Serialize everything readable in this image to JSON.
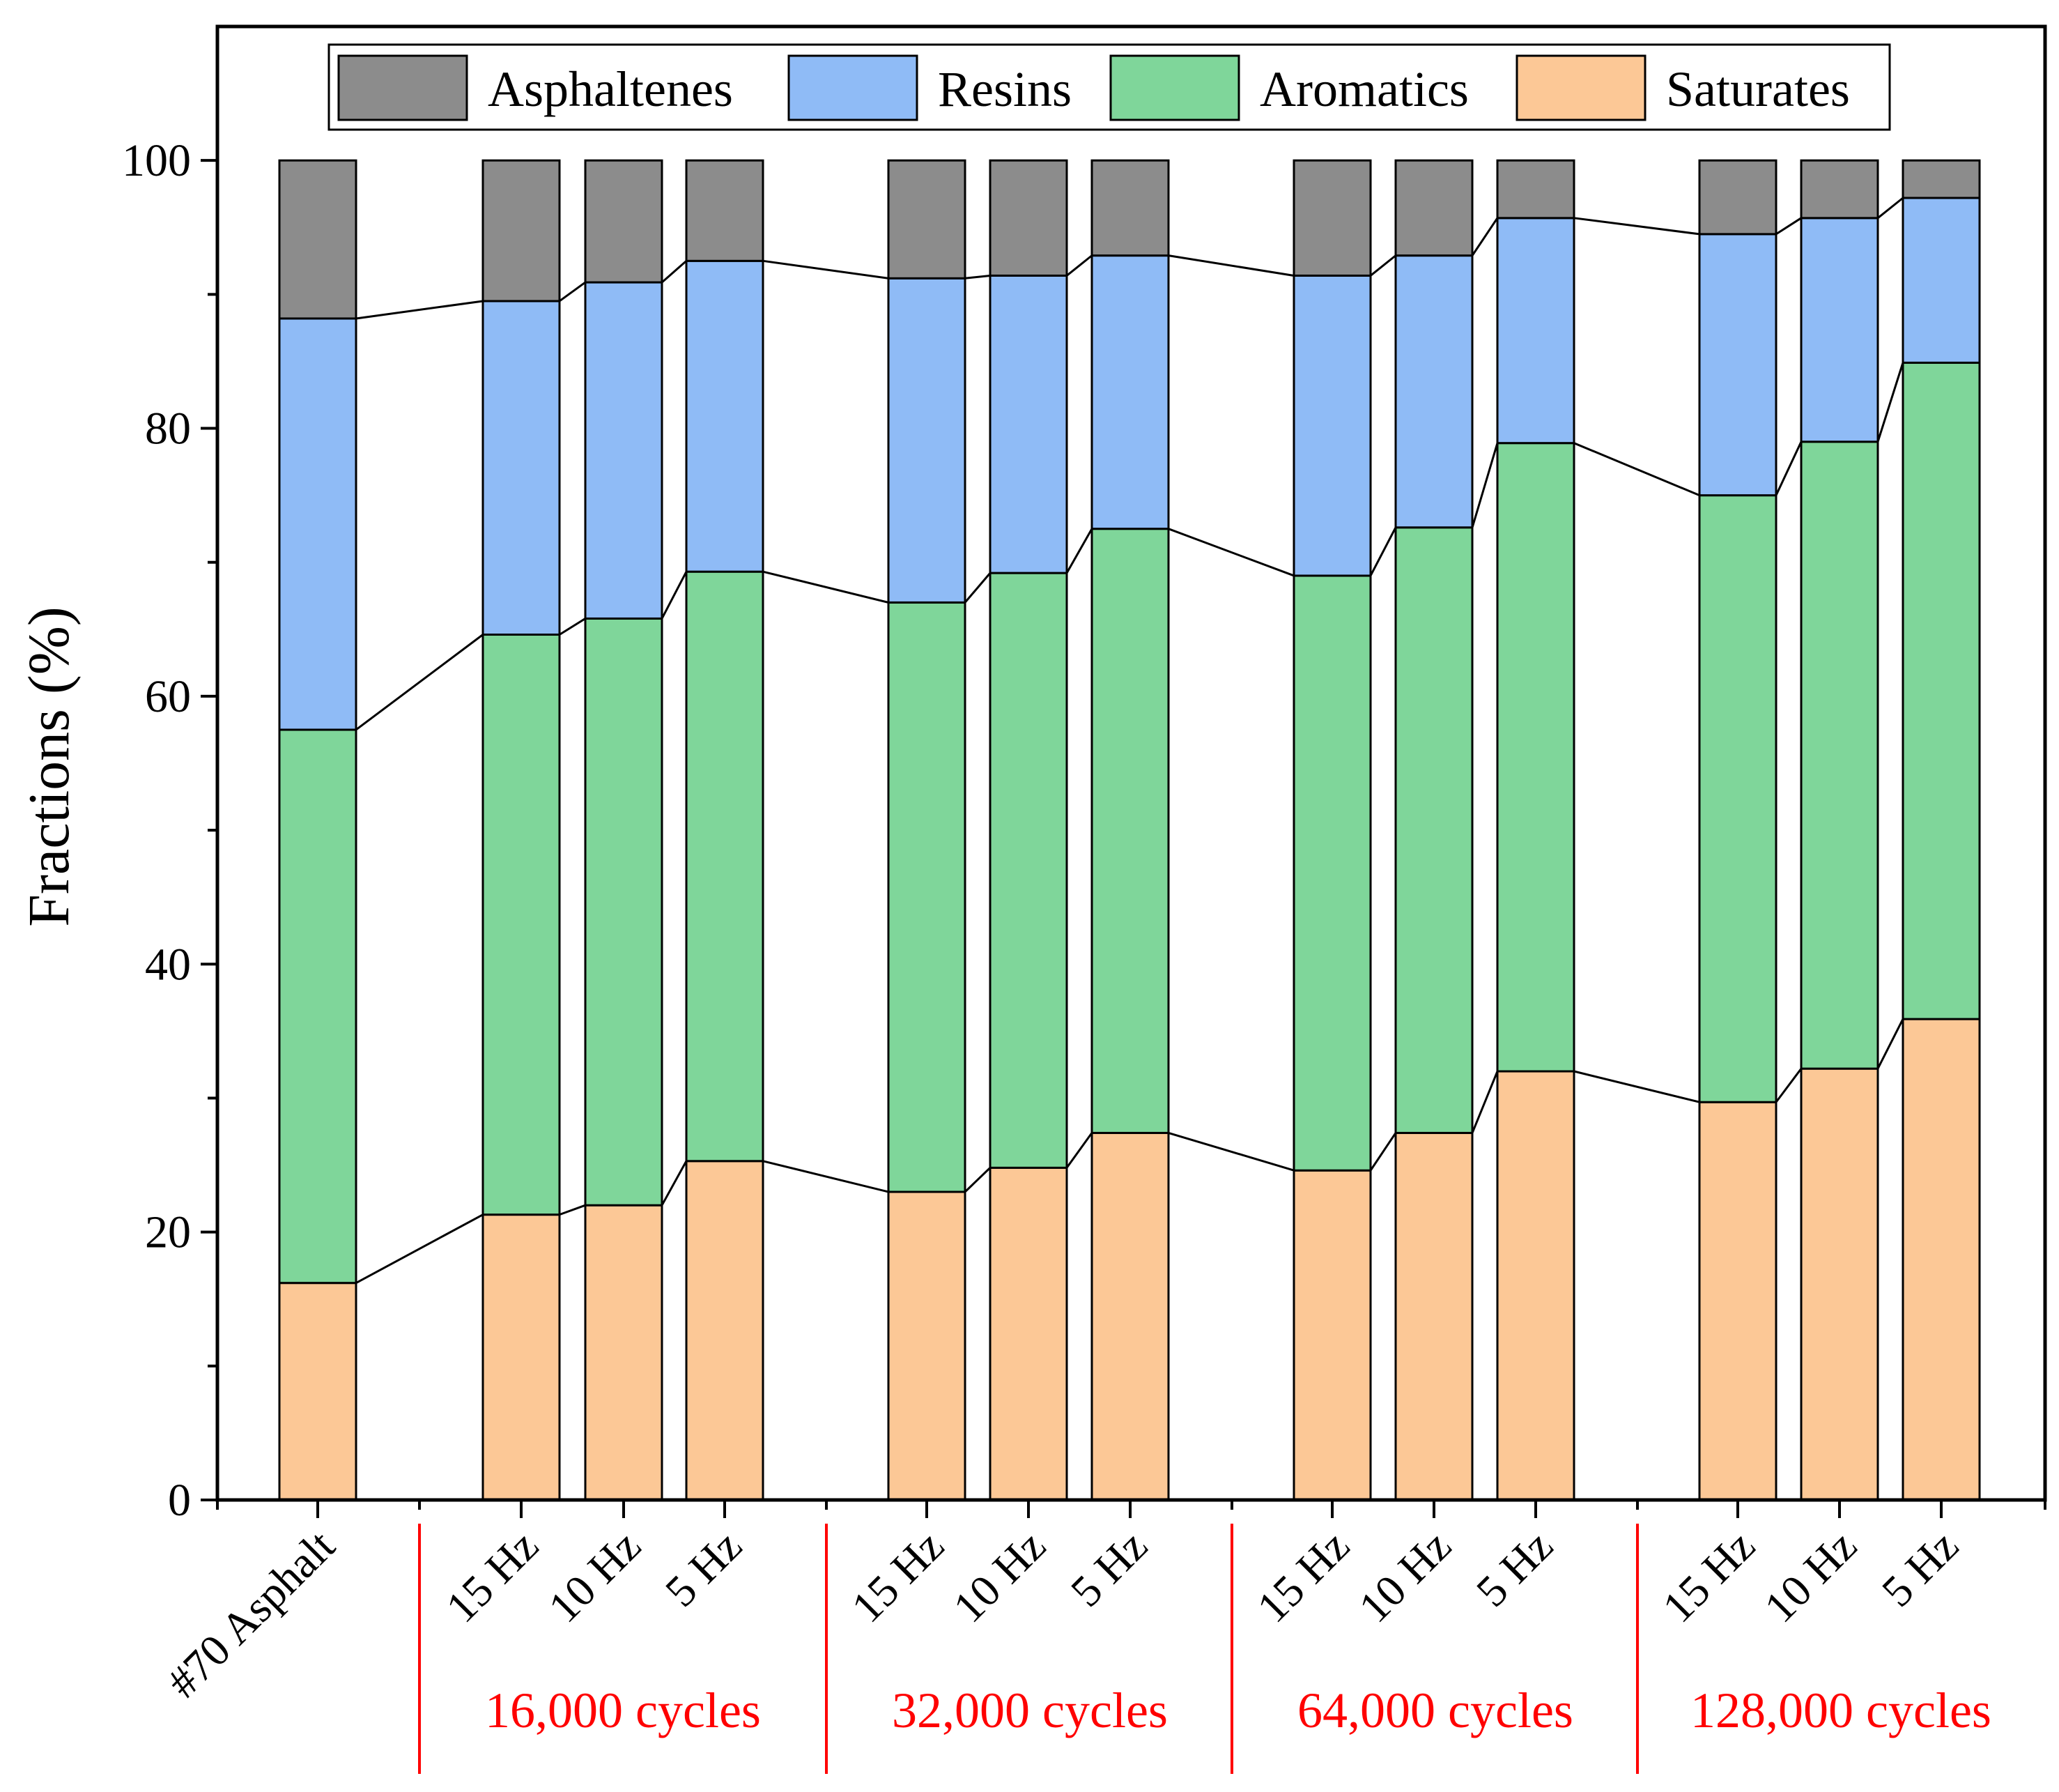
{
  "chart_data": {
    "type": "bar",
    "stacked": true,
    "ylabel": "Fractions (%)",
    "xlabel": "",
    "ylim": [
      0,
      110
    ],
    "yticks": [
      0,
      20,
      40,
      60,
      80,
      100
    ],
    "grid": false,
    "legend_position": "top",
    "connector_lines": true,
    "categories": [
      "#70 Asphalt",
      "15 Hz",
      "10 Hz",
      "5 Hz",
      "15 Hz",
      "10 Hz",
      "5 Hz",
      "15 Hz",
      "10 Hz",
      "5 Hz",
      "15 Hz",
      "10 Hz",
      "5 Hz"
    ],
    "groups": [
      {
        "label": "16,000 cycles",
        "categories": [
          1,
          2,
          3
        ]
      },
      {
        "label": "32,000 cycles",
        "categories": [
          4,
          5,
          6
        ]
      },
      {
        "label": "64,000 cycles",
        "categories": [
          7,
          8,
          9
        ]
      },
      {
        "label": "128,000 cycles",
        "categories": [
          10,
          11,
          12
        ]
      }
    ],
    "series": [
      {
        "name": "Saturates",
        "color": "#fcc896",
        "values": [
          16.2,
          21.3,
          22.0,
          25.3,
          23.0,
          24.8,
          27.4,
          24.6,
          27.4,
          32.0,
          29.7,
          32.2,
          35.9
        ]
      },
      {
        "name": "Aromatics",
        "color": "#7fd69a",
        "values": [
          41.3,
          43.3,
          43.8,
          44.0,
          44.0,
          44.4,
          45.1,
          44.4,
          45.2,
          46.9,
          45.3,
          46.8,
          49.0
        ]
      },
      {
        "name": "Resins",
        "color": "#8fbbf6",
        "values": [
          30.7,
          24.9,
          25.1,
          23.2,
          24.2,
          22.2,
          20.4,
          22.4,
          20.3,
          16.8,
          19.5,
          16.7,
          12.3
        ]
      },
      {
        "name": "Asphaltenes",
        "color": "#8c8c8c",
        "values": [
          11.8,
          10.5,
          9.1,
          7.5,
          8.8,
          8.6,
          7.1,
          8.6,
          7.1,
          4.3,
          5.5,
          4.3,
          2.8
        ]
      }
    ],
    "legend_order": [
      "Asphaltenes",
      "Resins",
      "Aromatics",
      "Saturates"
    ],
    "group_label_color": "#ff0000",
    "divider_color": "#ff0000"
  }
}
